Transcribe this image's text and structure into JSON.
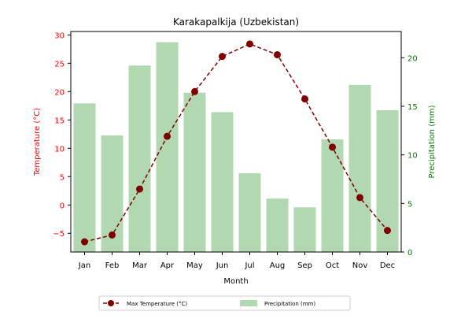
{
  "chart_data": {
    "type": "bar",
    "title": "Karakapalkija (Uzbekistan)",
    "xlabel": "Month",
    "categories": [
      "Jan",
      "Feb",
      "Mar",
      "Apr",
      "May",
      "Jun",
      "Jul",
      "Aug",
      "Sep",
      "Oct",
      "Nov",
      "Dec"
    ],
    "series": [
      {
        "name": "Max Temperature (°C)",
        "type": "line",
        "axis": "left",
        "color": "#800000",
        "style": "dashed-with-circle-markers",
        "values": [
          -6.5,
          -5.3,
          2.8,
          12.1,
          20.0,
          26.2,
          28.4,
          26.5,
          18.7,
          10.2,
          1.3,
          -4.5
        ]
      },
      {
        "name": "Precipitation (mm)",
        "type": "bar",
        "axis": "right",
        "color": "#b2d8b2",
        "values": [
          15.3,
          12.0,
          19.2,
          21.6,
          16.4,
          14.4,
          8.1,
          5.5,
          4.6,
          11.6,
          17.2,
          14.6
        ]
      }
    ],
    "left_axis": {
      "label": "Temperature (°C)",
      "color": "#ff0000",
      "ylim": [
        -8.3,
        30.6
      ],
      "ticks": [
        -5,
        0,
        5,
        10,
        15,
        20,
        25,
        30
      ]
    },
    "right_axis": {
      "label": "Precipitation (mm)",
      "color": "#008000",
      "ylim": [
        0,
        22.7
      ],
      "ticks": [
        0,
        5,
        10,
        15,
        20
      ]
    },
    "legend": {
      "placement": "bottom-center",
      "entries": [
        "Max Temperature (°C)",
        "Precipitation (mm)"
      ]
    },
    "grid": false
  }
}
